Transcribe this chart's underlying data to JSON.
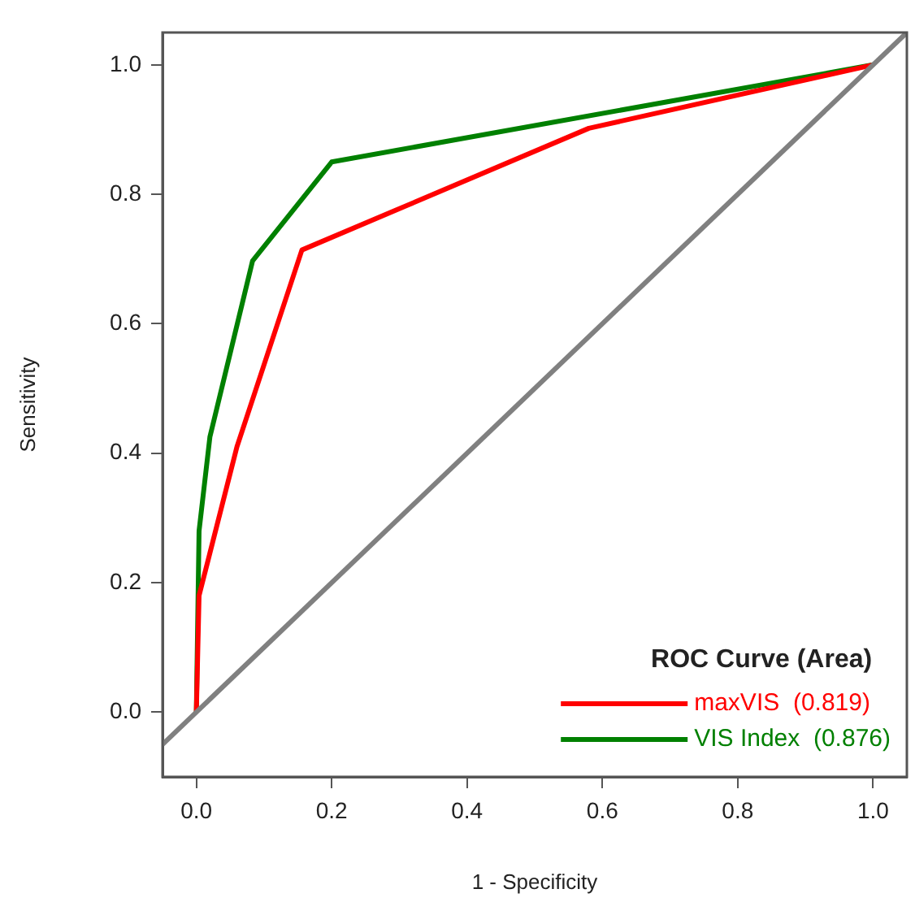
{
  "chart_data": {
    "type": "line",
    "xlabel": "1 - Specificity",
    "ylabel": "Sensitivity",
    "legend_title": "ROC Curve (Area)",
    "legend": "bottom right",
    "grid": false,
    "marker": "none",
    "line_style": "solid",
    "xlim": [
      -0.05,
      1.05
    ],
    "ylim": [
      -0.1,
      1.05
    ],
    "xticks": [
      {
        "value": 0,
        "label": "0.0"
      },
      {
        "value": 0.2,
        "label": "0.2"
      },
      {
        "value": 0.4,
        "label": "0.4"
      },
      {
        "value": 0.6,
        "label": "0.6"
      },
      {
        "value": 0.8,
        "label": "0.8"
      },
      {
        "value": 1,
        "label": "1.0"
      }
    ],
    "yticks": [
      {
        "value": 0,
        "label": "0.0"
      },
      {
        "value": 0.2,
        "label": "0.2"
      },
      {
        "value": 0.4,
        "label": "0.4"
      },
      {
        "value": 0.6,
        "label": "0.6"
      },
      {
        "value": 0.8,
        "label": "0.8"
      },
      {
        "value": 1,
        "label": "1.0"
      }
    ],
    "series": [
      {
        "color": "#808080",
        "x": [
          -0.05,
          1.05
        ],
        "values": [
          -0.05,
          1.05
        ]
      },
      {
        "name": "maxVIS  (0.819)",
        "color": "#ff0000",
        "x": [
          0,
          0.004,
          0.06,
          0.156,
          0.58,
          1
        ],
        "values": [
          0,
          0.18,
          0.41,
          0.714,
          0.902,
          1
        ]
      },
      {
        "name": "VIS Index  (0.876)",
        "color": "#008000",
        "x": [
          0,
          0.004,
          0.02,
          0.083,
          0.2,
          1
        ],
        "values": [
          0,
          0.28,
          0.425,
          0.697,
          0.85,
          1
        ]
      }
    ]
  }
}
